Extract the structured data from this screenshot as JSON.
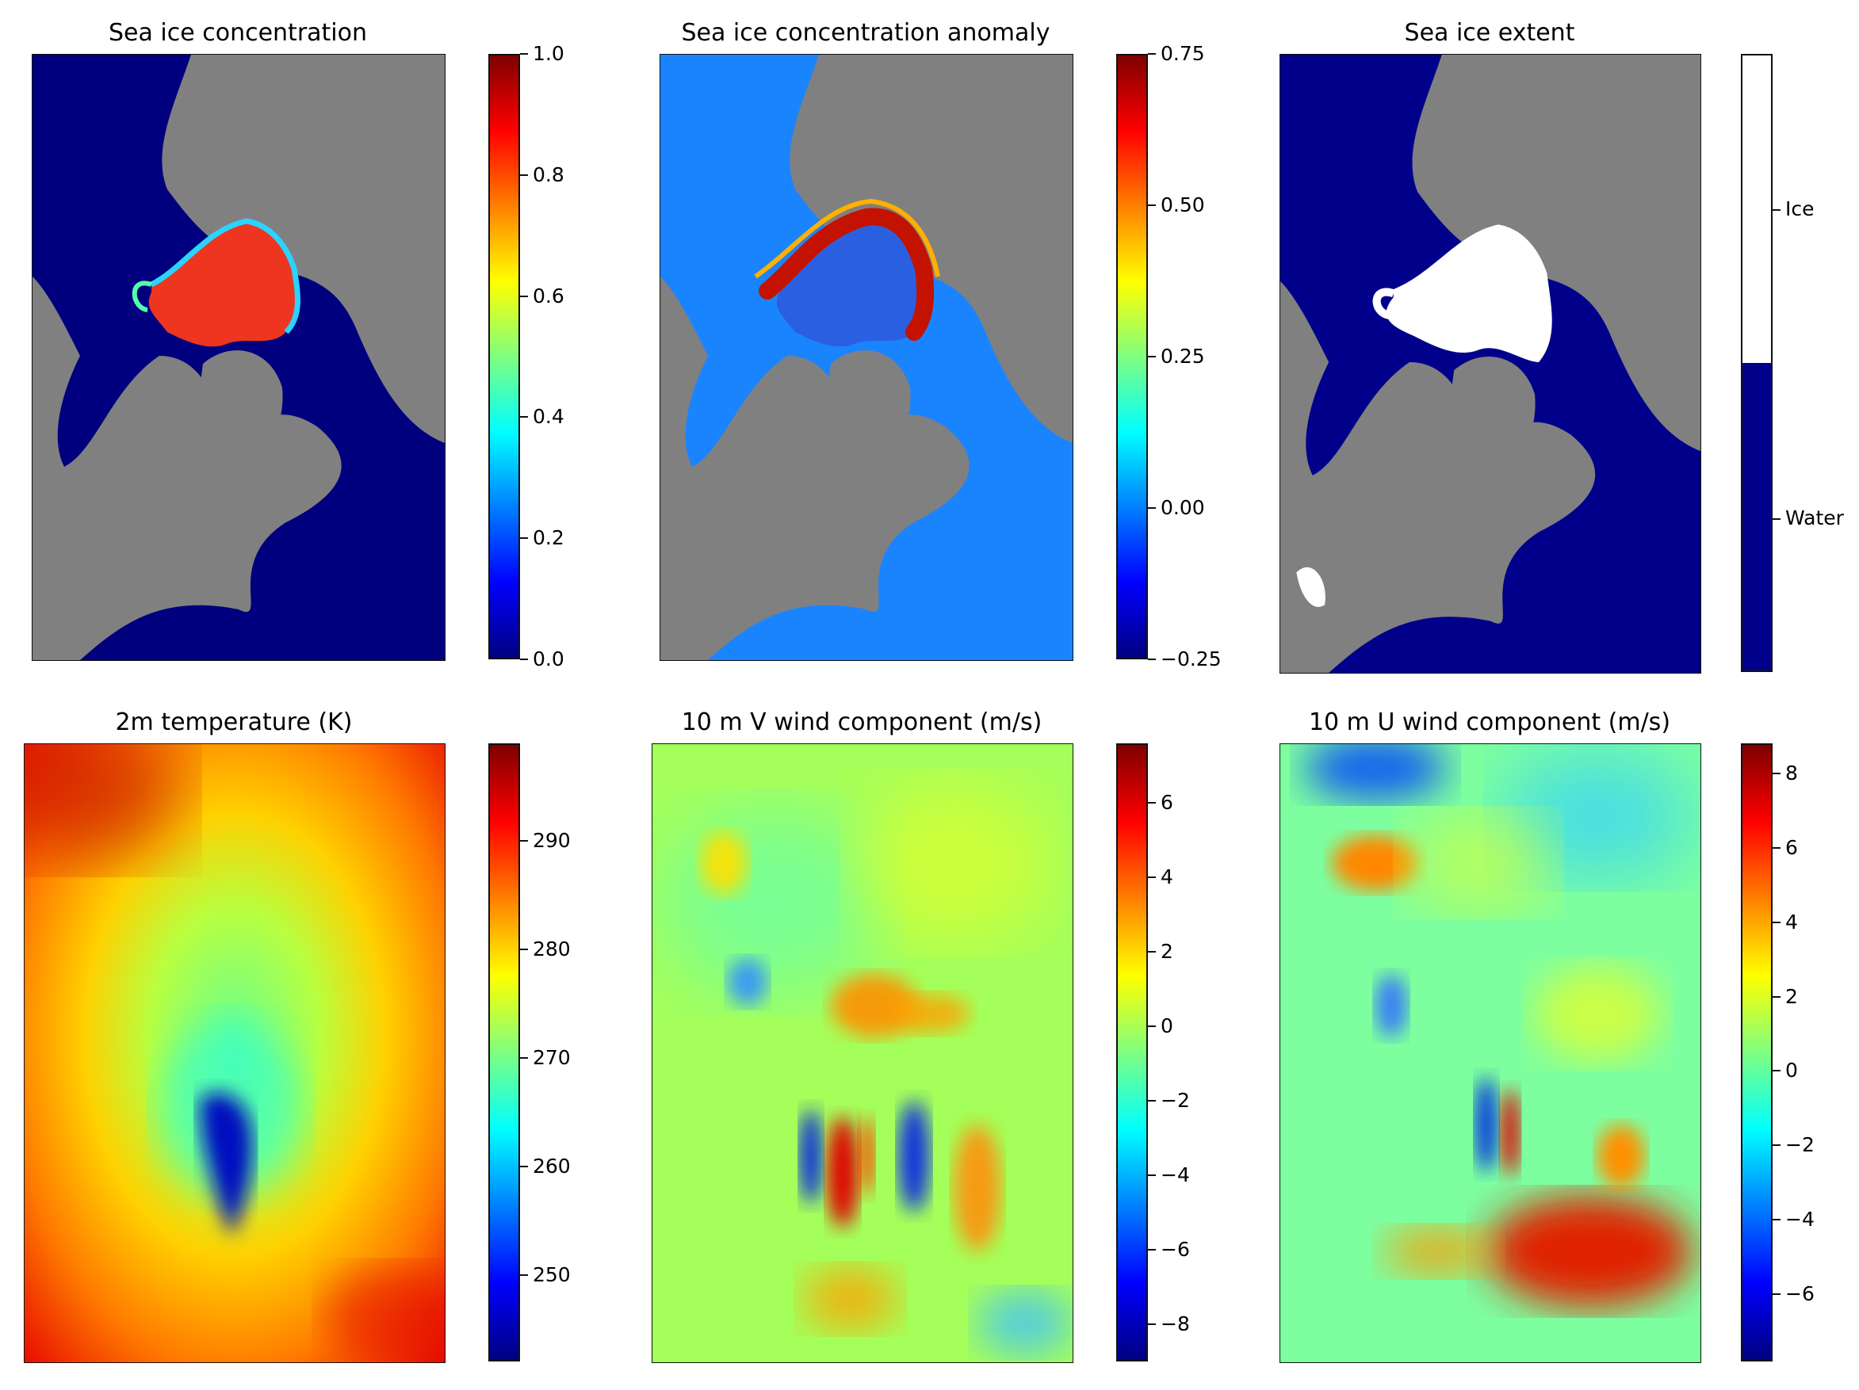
{
  "figure": {
    "panels": [
      {
        "title": "Sea ice concentration",
        "colorbar": {
          "colormap": "jet",
          "min": 0.0,
          "max": 1.0,
          "ticks": [
            {
              "value": 0.0,
              "label": "0.0"
            },
            {
              "value": 0.2,
              "label": "0.2"
            },
            {
              "value": 0.4,
              "label": "0.4"
            },
            {
              "value": 0.6,
              "label": "0.6"
            },
            {
              "value": 0.8,
              "label": "0.8"
            },
            {
              "value": 1.0,
              "label": "1.0"
            }
          ]
        },
        "field": {
          "ocean_color": "#00007f",
          "land_color": "#808080",
          "ice_color": "#ef3b1c"
        }
      },
      {
        "title": "Sea ice concentration anomaly",
        "colorbar": {
          "colormap": "jet",
          "min": -0.25,
          "max": 0.75,
          "ticks": [
            {
              "value": -0.25,
              "label": "−0.25"
            },
            {
              "value": 0.0,
              "label": "0.00"
            },
            {
              "value": 0.25,
              "label": "0.25"
            },
            {
              "value": 0.5,
              "label": "0.50"
            },
            {
              "value": 0.75,
              "label": "0.75"
            }
          ]
        },
        "field": {
          "ocean_color": "#1a84ff",
          "land_color": "#808080",
          "ice_color": "#c81000"
        }
      },
      {
        "title": "Sea ice extent",
        "colorbar": {
          "colormap": "binary",
          "categories": [
            {
              "label": "Ice",
              "color": "#ffffff"
            },
            {
              "label": "Water",
              "color": "#00008b"
            }
          ]
        },
        "field": {
          "ocean_color": "#00008b",
          "land_color": "#808080",
          "ice_color": "#ffffff"
        }
      },
      {
        "title": "2m temperature (K)",
        "colorbar": {
          "colormap": "jet",
          "min": 242,
          "max": 299,
          "ticks": [
            {
              "value": 250,
              "label": "250"
            },
            {
              "value": 260,
              "label": "260"
            },
            {
              "value": 270,
              "label": "270"
            },
            {
              "value": 280,
              "label": "280"
            },
            {
              "value": 290,
              "label": "290"
            }
          ]
        },
        "field": {
          "type": "continuous"
        }
      },
      {
        "title": "10 m V wind component (m/s)",
        "colorbar": {
          "colormap": "jet",
          "min": -9,
          "max": 7.6,
          "ticks": [
            {
              "value": -8,
              "label": "−8"
            },
            {
              "value": -6,
              "label": "−6"
            },
            {
              "value": -4,
              "label": "−4"
            },
            {
              "value": -2,
              "label": "−2"
            },
            {
              "value": 0,
              "label": "0"
            },
            {
              "value": 2,
              "label": "2"
            },
            {
              "value": 4,
              "label": "4"
            },
            {
              "value": 6,
              "label": "6"
            }
          ]
        },
        "field": {
          "type": "continuous"
        }
      },
      {
        "title": "10 m U wind component (m/s)",
        "colorbar": {
          "colormap": "jet",
          "min": -7.8,
          "max": 8.8,
          "ticks": [
            {
              "value": -6,
              "label": "−6"
            },
            {
              "value": -4,
              "label": "−4"
            },
            {
              "value": -2,
              "label": "−2"
            },
            {
              "value": 0,
              "label": "0"
            },
            {
              "value": 2,
              "label": "2"
            },
            {
              "value": 4,
              "label": "4"
            },
            {
              "value": 6,
              "label": "6"
            },
            {
              "value": 8,
              "label": "8"
            }
          ]
        },
        "field": {
          "type": "continuous"
        }
      }
    ]
  }
}
